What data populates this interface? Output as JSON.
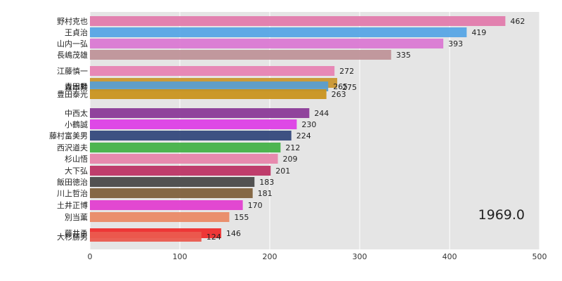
{
  "chart_data": {
    "type": "bar",
    "orientation": "horizontal",
    "period_label": "1969.0",
    "xlim": [
      0,
      500
    ],
    "x_ticks": [
      "0",
      "100",
      "200",
      "300",
      "400",
      "500"
    ],
    "grid": true,
    "bars": [
      {
        "name": "野村克也",
        "value": 462,
        "value_label": "462",
        "color": "#e17bac"
      },
      {
        "name": "王貞治",
        "value": 419,
        "value_label": "419",
        "color": "#57a5e5"
      },
      {
        "name": "山内一弘",
        "value": 393,
        "value_label": "393",
        "color": "#da79d3"
      },
      {
        "name": "長嶋茂雄",
        "value": 335,
        "value_label": "335",
        "color": "#bf9399"
      },
      {
        "name": "江藤慎一",
        "value": 272,
        "value_label": "272",
        "color": "#e783b3"
      },
      {
        "name": "森本勲",
        "value": 275,
        "value_label": "275",
        "color": "#c9962f"
      },
      {
        "name": "青田昇",
        "value": 265,
        "value_label": "265",
        "color": "#5a9ed0"
      },
      {
        "name": "豊田泰光",
        "value": 263,
        "value_label": "263",
        "color": "#c9931f"
      },
      {
        "name": "中西太",
        "value": 244,
        "value_label": "244",
        "color": "#8b3a98"
      },
      {
        "name": "小鶴誠",
        "value": 230,
        "value_label": "230",
        "color": "#dd3fe6"
      },
      {
        "name": "藤村富美男",
        "value": 224,
        "value_label": "224",
        "color": "#34497c"
      },
      {
        "name": "西沢道夫",
        "value": 212,
        "value_label": "212",
        "color": "#45b248"
      },
      {
        "name": "杉山悟",
        "value": 209,
        "value_label": "209",
        "color": "#e785ab"
      },
      {
        "name": "大下弘",
        "value": 201,
        "value_label": "201",
        "color": "#bd3465"
      },
      {
        "name": "飯田徳治",
        "value": 183,
        "value_label": "183",
        "color": "#4a4a4a"
      },
      {
        "name": "川上哲治",
        "value": 181,
        "value_label": "181",
        "color": "#80613c"
      },
      {
        "name": "土井正博",
        "value": 170,
        "value_label": "170",
        "color": "#e23fd0"
      },
      {
        "name": "別当薫",
        "value": 155,
        "value_label": "155",
        "color": "#ea8a66"
      },
      {
        "name": "藤井勇",
        "value": 146,
        "value_label": "146",
        "color": "#ee2d2d"
      },
      {
        "name": "大杉勝男",
        "value": 124,
        "value_label": "124",
        "color": "#ea5a4e"
      }
    ]
  }
}
